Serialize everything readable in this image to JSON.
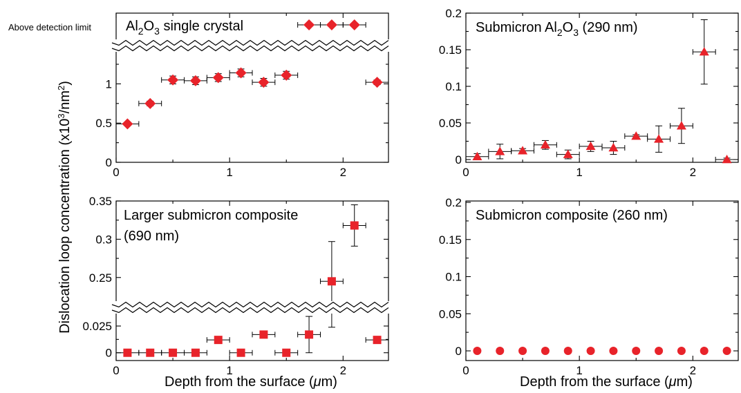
{
  "figure": {
    "ylabel_main": "Dislocation loop concentration (x10",
    "ylabel_sup3": "3",
    "ylabel_unit": "/nm",
    "ylabel_sup2": "2",
    "ylabel_end": ")",
    "xlabel_prefix": "Depth from the surface (",
    "xlabel_mu": "μ",
    "xlabel_suffix": "m)",
    "above_detection_limit": "Above detection limit"
  },
  "chart_data": [
    {
      "id": "tl",
      "type": "scatter",
      "title_parts": [
        "Al",
        "2",
        "O",
        "3",
        " single  crystal"
      ],
      "marker": "diamond",
      "color": "#e8232a",
      "xlim": [
        0,
        2.4
      ],
      "xticks": [
        0,
        1,
        2
      ],
      "xticklabels": [
        "0",
        "1",
        "2"
      ],
      "yaxis_break": true,
      "ylim_lower": [
        0,
        1.4
      ],
      "yticks": [
        0,
        0.5,
        1
      ],
      "yticklabels": [
        "0",
        "0.5",
        "1"
      ],
      "points": [
        {
          "x": 0.1,
          "y": 0.49,
          "yerr": 0.02
        },
        {
          "x": 0.3,
          "y": 0.75,
          "yerr": 0.03
        },
        {
          "x": 0.5,
          "y": 1.05,
          "yerr": 0.05
        },
        {
          "x": 0.7,
          "y": 1.04,
          "yerr": 0.05
        },
        {
          "x": 0.9,
          "y": 1.08,
          "yerr": 0.05
        },
        {
          "x": 1.1,
          "y": 1.14,
          "yerr": 0.05
        },
        {
          "x": 1.3,
          "y": 1.02,
          "yerr": 0.05
        },
        {
          "x": 1.5,
          "y": 1.11,
          "yerr": 0.05
        },
        {
          "x": 2.3,
          "y": 1.02,
          "yerr": 0.03
        }
      ],
      "above_limit_x": [
        1.7,
        1.9,
        2.1
      ],
      "xerr": 0.1
    },
    {
      "id": "tr",
      "type": "scatter",
      "title_parts": [
        "Submicron Al",
        "2",
        "O",
        "3",
        " (290 nm)"
      ],
      "marker": "triangle",
      "color": "#e8232a",
      "xlim": [
        0,
        2.4
      ],
      "xticks": [
        0,
        1,
        2
      ],
      "xticklabels": [
        "0",
        "1",
        "2"
      ],
      "ylim": [
        0,
        0.2
      ],
      "yticks": [
        0,
        0.05,
        0.1,
        0.15,
        0.2
      ],
      "yticklabels": [
        "0",
        "0.05",
        "0.1",
        "0.15",
        "0.2"
      ],
      "points": [
        {
          "x": 0.1,
          "y": 0.004,
          "yerr": 0.004
        },
        {
          "x": 0.3,
          "y": 0.011,
          "yerr": 0.01
        },
        {
          "x": 0.5,
          "y": 0.012,
          "yerr": 0.003
        },
        {
          "x": 0.7,
          "y": 0.02,
          "yerr": 0.006
        },
        {
          "x": 0.9,
          "y": 0.007,
          "yerr": 0.006
        },
        {
          "x": 1.1,
          "y": 0.018,
          "yerr": 0.007
        },
        {
          "x": 1.3,
          "y": 0.016,
          "yerr": 0.009
        },
        {
          "x": 1.5,
          "y": 0.032,
          "yerr": 0.002
        },
        {
          "x": 1.7,
          "y": 0.028,
          "yerr": 0.018
        },
        {
          "x": 1.9,
          "y": 0.046,
          "yerr": 0.024
        },
        {
          "x": 2.1,
          "y": 0.147,
          "yerr": 0.044
        },
        {
          "x": 2.3,
          "y": 0.0,
          "yerr": 0.002
        }
      ],
      "xerr": 0.1
    },
    {
      "id": "bl",
      "type": "scatter",
      "title_line1": "Larger submicron composite",
      "title_line2": "(690 nm)",
      "marker": "square",
      "color": "#e8232a",
      "xlim": [
        0,
        2.4
      ],
      "xticks": [
        0,
        1,
        2
      ],
      "xticklabels": [
        "0",
        "1",
        "2"
      ],
      "yaxis_break": true,
      "ylim_lower": [
        -0.006,
        0.036
      ],
      "ylim_upper": [
        0.22,
        0.35
      ],
      "yticks_lower": [
        0,
        0.025
      ],
      "yticklabels_lower": [
        "0",
        "0.025"
      ],
      "yticks_upper": [
        0.25,
        0.3,
        0.35
      ],
      "yticklabels_upper": [
        "0.25",
        "0.3",
        "0.35"
      ],
      "points": [
        {
          "x": 0.1,
          "y": 0.0,
          "yerr": 0.0
        },
        {
          "x": 0.3,
          "y": 0.0,
          "yerr": 0.0
        },
        {
          "x": 0.5,
          "y": 0.0,
          "yerr": 0.0
        },
        {
          "x": 0.7,
          "y": 0.0,
          "yerr": 0.0
        },
        {
          "x": 0.9,
          "y": 0.012,
          "yerr": 0.002
        },
        {
          "x": 1.1,
          "y": 0.0,
          "yerr": 0.0
        },
        {
          "x": 1.3,
          "y": 0.017,
          "yerr": 0.002
        },
        {
          "x": 1.5,
          "y": 0.0,
          "yerr": 0.0
        },
        {
          "x": 1.7,
          "y": 0.017,
          "yerr": 0.017
        },
        {
          "x": 1.9,
          "y": 0.245,
          "yerr_up": 0.052,
          "yerr_down": 0.06
        },
        {
          "x": 2.1,
          "y": 0.318,
          "yerr": 0.027
        },
        {
          "x": 2.3,
          "y": 0.012,
          "yerr": 0.0
        }
      ],
      "xerr": 0.1
    },
    {
      "id": "br",
      "type": "scatter",
      "title": "Submicron composite (260 nm)",
      "marker": "circle",
      "color": "#e8232a",
      "xlim": [
        0,
        2.4
      ],
      "xticks": [
        0,
        1,
        2
      ],
      "xticklabels": [
        "0",
        "1",
        "2"
      ],
      "ylim": [
        -0.01,
        0.2
      ],
      "yticks": [
        0,
        0.05,
        0.1,
        0.15,
        0.2
      ],
      "yticklabels": [
        "0",
        "0.05",
        "0.1",
        "0.15",
        "0.2"
      ],
      "points": [
        {
          "x": 0.1,
          "y": 0.0
        },
        {
          "x": 0.3,
          "y": 0.0
        },
        {
          "x": 0.5,
          "y": 0.0
        },
        {
          "x": 0.7,
          "y": 0.0
        },
        {
          "x": 0.9,
          "y": 0.0
        },
        {
          "x": 1.1,
          "y": 0.0
        },
        {
          "x": 1.3,
          "y": 0.0
        },
        {
          "x": 1.5,
          "y": 0.0
        },
        {
          "x": 1.7,
          "y": 0.0
        },
        {
          "x": 1.9,
          "y": 0.0
        },
        {
          "x": 2.1,
          "y": 0.0
        },
        {
          "x": 2.3,
          "y": 0.0
        }
      ]
    }
  ]
}
